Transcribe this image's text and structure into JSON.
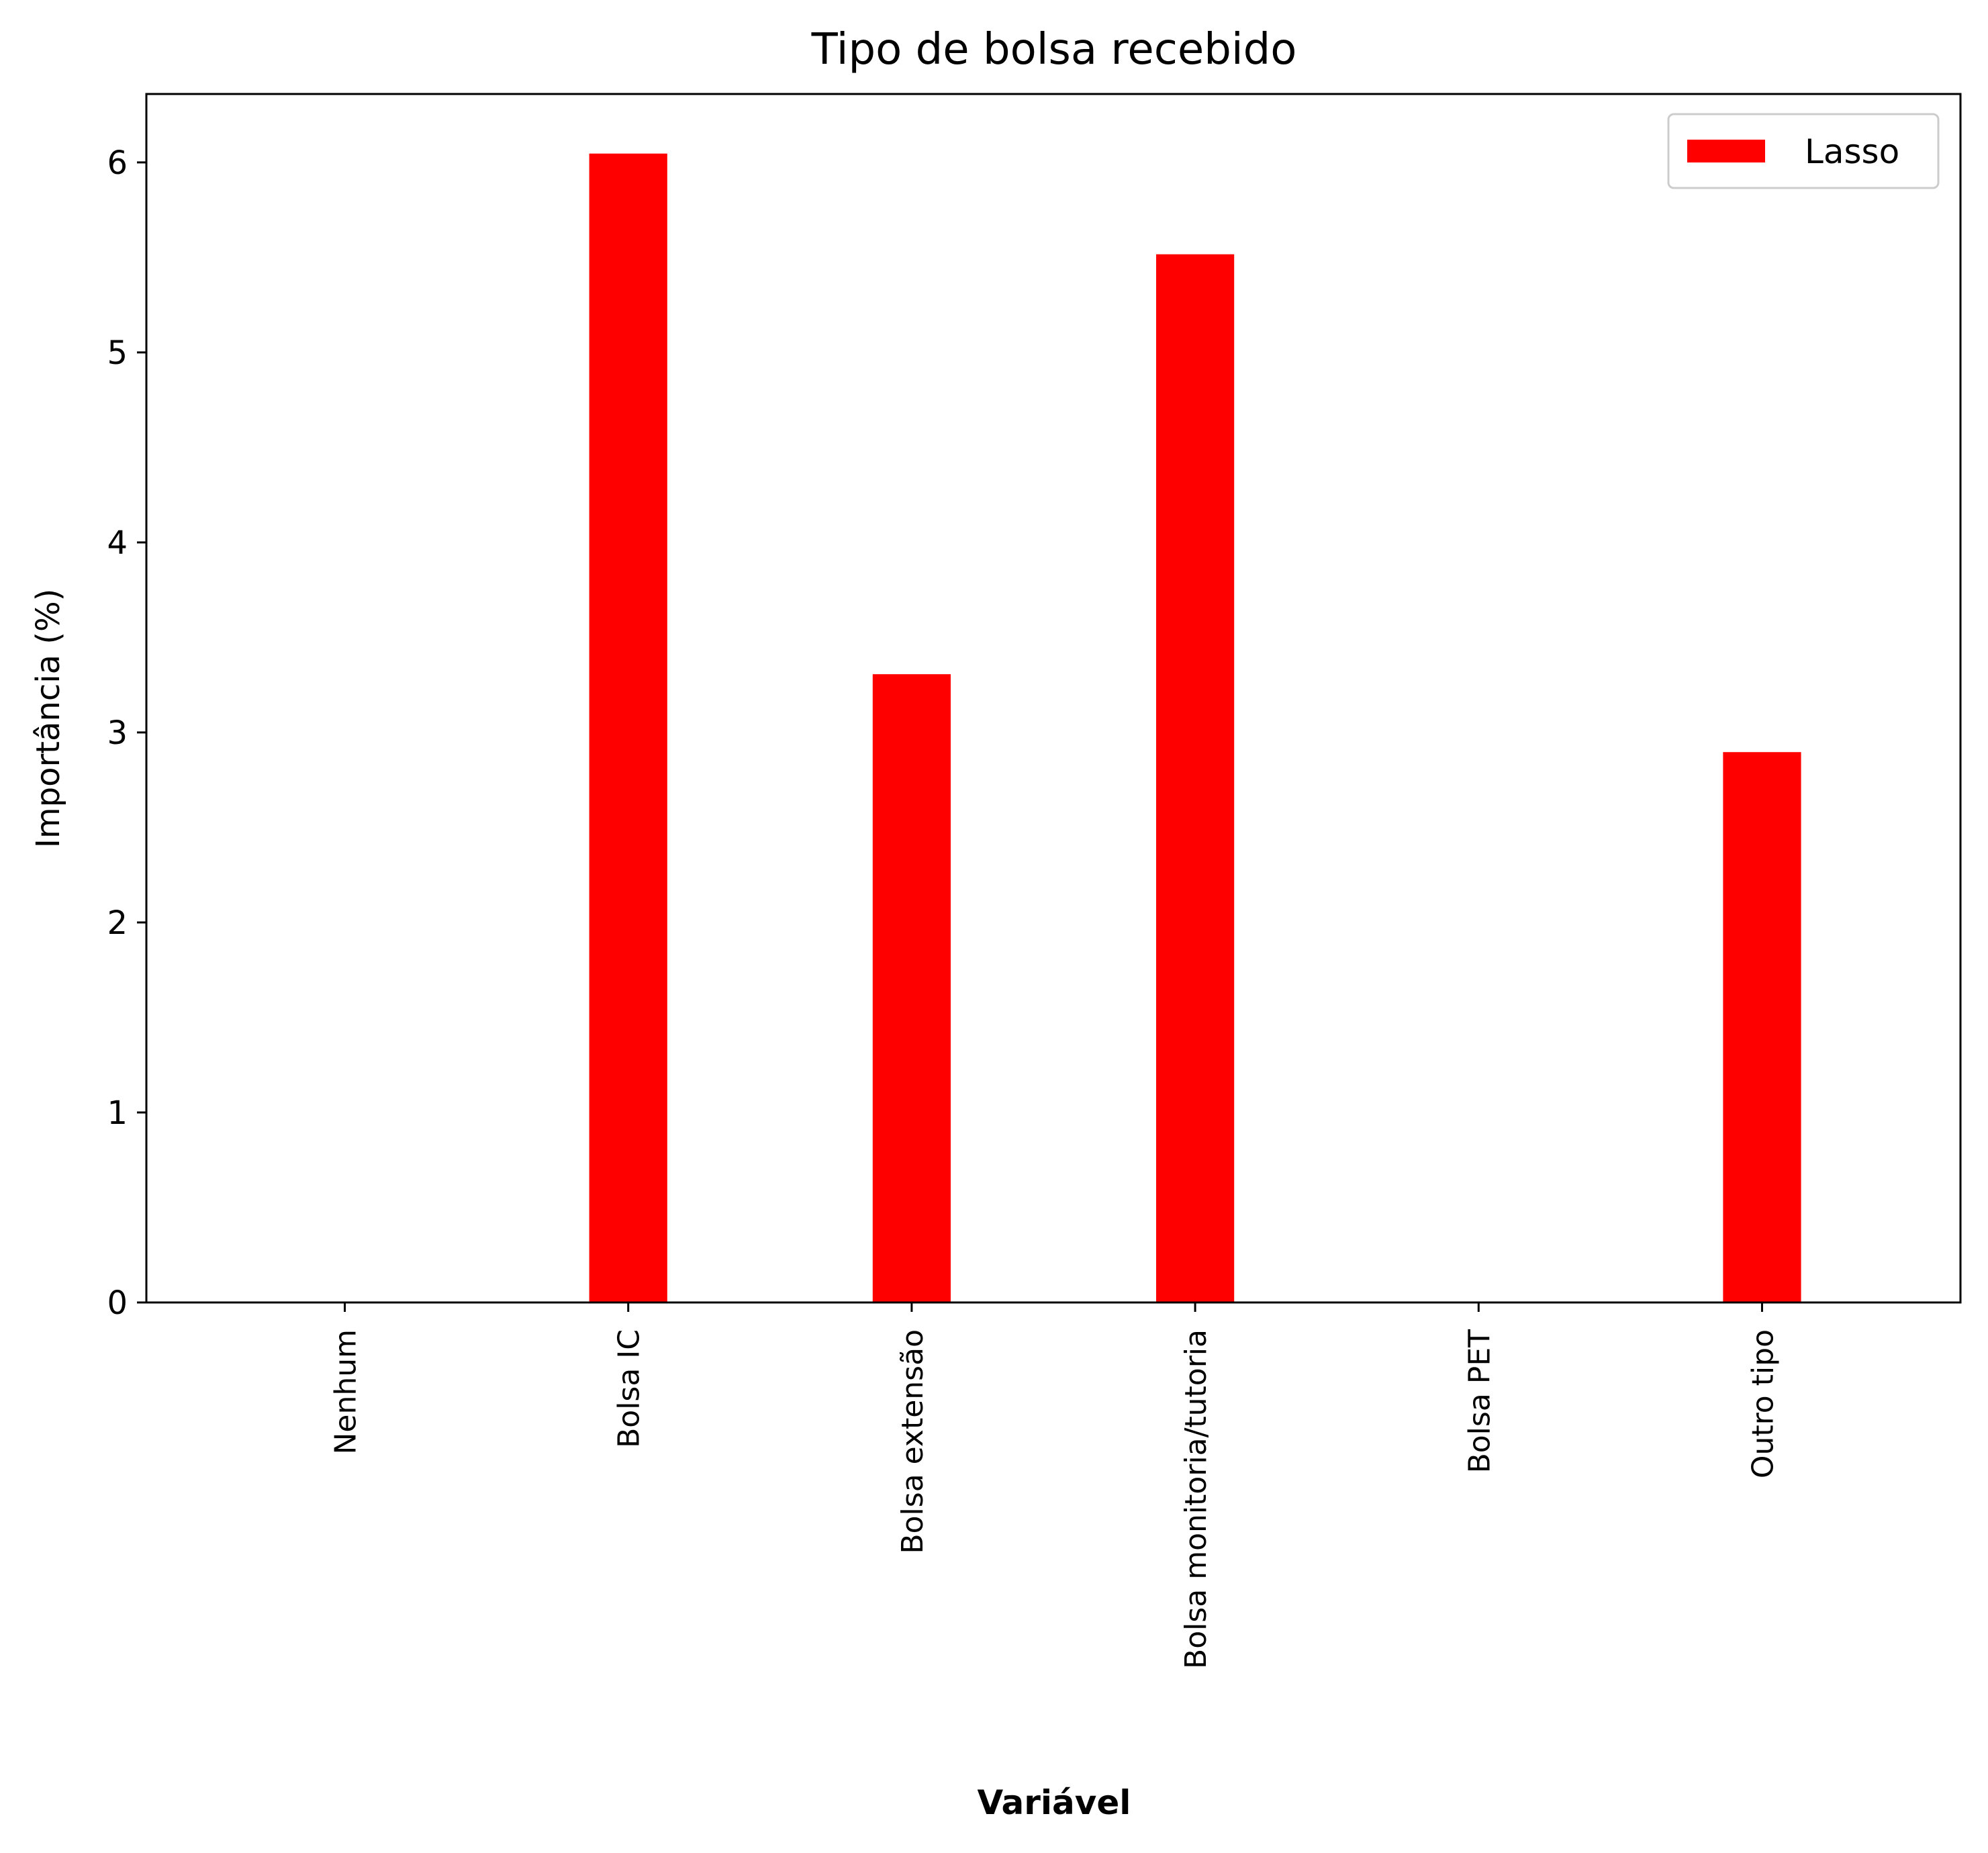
{
  "chart_data": {
    "type": "bar",
    "title": "Tipo de bolsa recebido",
    "xlabel": "Variável",
    "ylabel": "Importância (%)",
    "categories": [
      "Nenhum",
      "Bolsa IC",
      "Bolsa extensão",
      "Bolsa monitoria/tutoria",
      "Bolsa PET",
      "Outro tipo"
    ],
    "series": [
      {
        "name": "Lasso",
        "color": "#ff0000",
        "values": [
          0,
          6.05,
          3.31,
          5.52,
          0,
          2.9
        ]
      }
    ],
    "ylim": [
      0,
      6.36
    ],
    "yticks": [
      "0",
      "1",
      "2",
      "3",
      "4",
      "5",
      "6"
    ],
    "grid": false,
    "legend": "top-right"
  }
}
